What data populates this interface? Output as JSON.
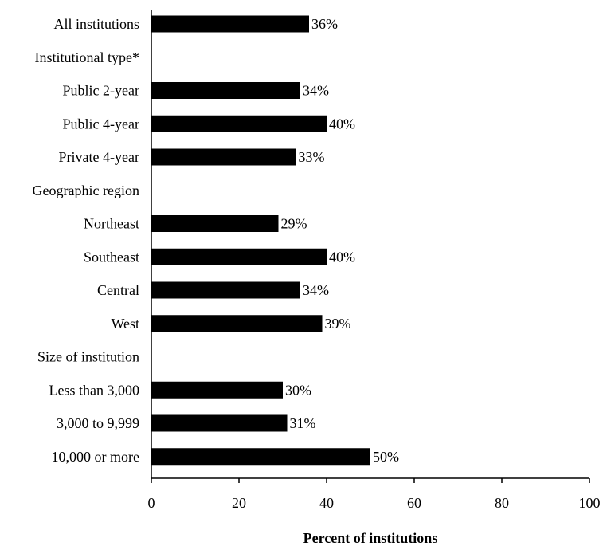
{
  "chart_data": {
    "type": "bar",
    "orientation": "horizontal",
    "categories": [
      "All institutions",
      "Institutional type*",
      "Public 2-year",
      "Public 4-year",
      "Private 4-year",
      "Geographic region",
      "Northeast",
      "Southeast",
      "Central",
      "West",
      "Size of institution",
      "Less than 3,000",
      "3,000 to 9,999",
      "10,000 or more"
    ],
    "values": [
      36,
      null,
      34,
      40,
      33,
      null,
      29,
      40,
      34,
      39,
      null,
      30,
      31,
      50
    ],
    "data_labels": [
      "36%",
      "",
      "34%",
      "40%",
      "33%",
      "",
      "29%",
      "40%",
      "34%",
      "39%",
      "",
      "30%",
      "31%",
      "50%"
    ],
    "xlabel": "Percent of institutions",
    "xlim": [
      0,
      100
    ],
    "xticks": [
      "0",
      "20",
      "40",
      "60",
      "80",
      "100"
    ],
    "grid": false,
    "bar_color": "#000000"
  }
}
